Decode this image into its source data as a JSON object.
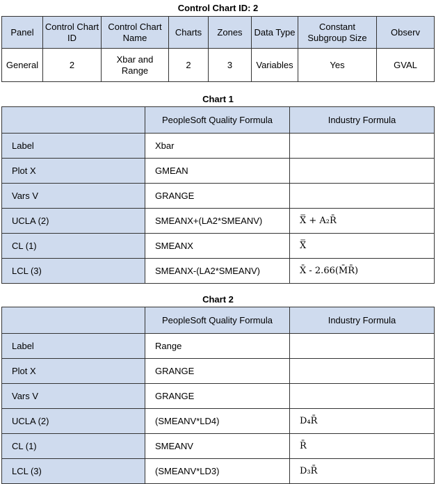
{
  "summary": {
    "title": "Control Chart ID: 2",
    "headers": [
      "Panel",
      "Control Chart ID",
      "Control Chart Name",
      "Charts",
      "Zones",
      "Data Type",
      "Constant Subgroup Size",
      "Observ"
    ],
    "values": [
      "General",
      "2",
      "Xbar and Range",
      "2",
      "3",
      "Variables",
      "Yes",
      "GVAL"
    ]
  },
  "charts": [
    {
      "title": "Chart 1",
      "headers": [
        "",
        "PeopleSoft Quality Formula",
        "Industry Formula"
      ],
      "rows": [
        [
          "Label",
          "Xbar",
          ""
        ],
        [
          "Plot X",
          "GMEAN",
          ""
        ],
        [
          "Vars V",
          "GRANGE",
          ""
        ],
        [
          "UCLA (2)",
          "SMEANX+(LA2*SMEANV)",
          "X̿ + A₂R̄"
        ],
        [
          "CL (1)",
          "SMEANX",
          "X̿"
        ],
        [
          "LCL (3)",
          "SMEANX-(LA2*SMEANV)",
          "X̄ - 2.66(M̄R̄)"
        ]
      ]
    },
    {
      "title": "Chart 2",
      "headers": [
        "",
        "PeopleSoft Quality Formula",
        "Industry Formula"
      ],
      "rows": [
        [
          "Label",
          "Range",
          ""
        ],
        [
          "Plot X",
          "GRANGE",
          ""
        ],
        [
          "Vars V",
          "GRANGE",
          ""
        ],
        [
          "UCLA (2)",
          "(SMEANV*LD4)",
          "D₄R̄"
        ],
        [
          "CL (1)",
          "SMEANV",
          "R̄"
        ],
        [
          "LCL (3)",
          "(SMEANV*LD3)",
          "D₃R̄"
        ]
      ]
    }
  ]
}
